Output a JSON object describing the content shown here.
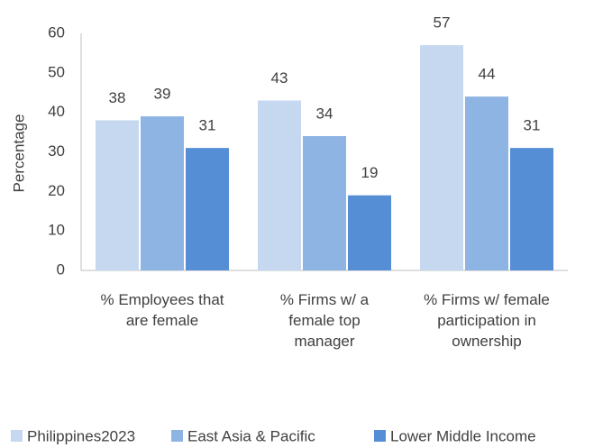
{
  "chart_data": {
    "type": "bar",
    "y_label": "Percentage",
    "categories": [
      "% Employees that are female",
      "% Firms w/ a female top manager",
      "% Firms w/ female participation in ownership"
    ],
    "series": [
      {
        "name": "Philippines2023",
        "color": "#c5d8f0",
        "values": [
          38,
          43,
          57
        ]
      },
      {
        "name": "East Asia & Pacific",
        "color": "#8eb4e3",
        "values": [
          39,
          34,
          44
        ]
      },
      {
        "name": "Lower Middle Income",
        "color": "#558ed5",
        "values": [
          31,
          19,
          31
        ]
      }
    ],
    "ylim": [
      0,
      60
    ],
    "yticks": [
      0,
      10,
      20,
      30,
      40,
      50,
      60
    ],
    "grid": false,
    "legend": "bottom"
  }
}
